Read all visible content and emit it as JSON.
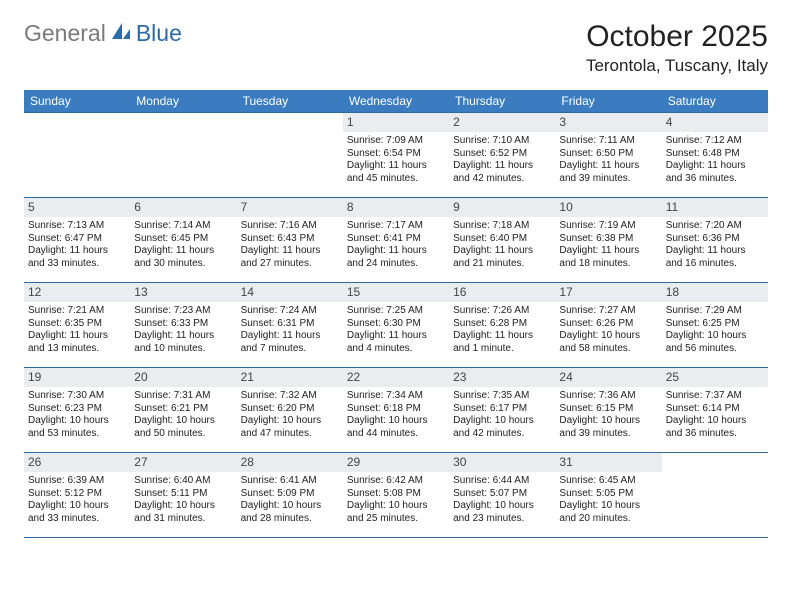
{
  "logo": {
    "general": "General",
    "blue": "Blue"
  },
  "title": {
    "month": "October 2025",
    "location": "Terontola, Tuscany, Italy"
  },
  "colors": {
    "header_bg": "#3a7cbf",
    "header_text": "#ffffff",
    "daynum_bg": "#e9edf0",
    "border": "#2b6aa6",
    "text": "#222222",
    "logo_gray": "#7a7a7a",
    "logo_blue": "#2b6aa6",
    "page_bg": "#ffffff"
  },
  "day_headers": [
    "Sunday",
    "Monday",
    "Tuesday",
    "Wednesday",
    "Thursday",
    "Friday",
    "Saturday"
  ],
  "weeks": [
    [
      {
        "empty": true
      },
      {
        "empty": true
      },
      {
        "empty": true
      },
      {
        "num": "1",
        "sunrise": "Sunrise: 7:09 AM",
        "sunset": "Sunset: 6:54 PM",
        "day1": "Daylight: 11 hours",
        "day2": "and 45 minutes."
      },
      {
        "num": "2",
        "sunrise": "Sunrise: 7:10 AM",
        "sunset": "Sunset: 6:52 PM",
        "day1": "Daylight: 11 hours",
        "day2": "and 42 minutes."
      },
      {
        "num": "3",
        "sunrise": "Sunrise: 7:11 AM",
        "sunset": "Sunset: 6:50 PM",
        "day1": "Daylight: 11 hours",
        "day2": "and 39 minutes."
      },
      {
        "num": "4",
        "sunrise": "Sunrise: 7:12 AM",
        "sunset": "Sunset: 6:48 PM",
        "day1": "Daylight: 11 hours",
        "day2": "and 36 minutes."
      }
    ],
    [
      {
        "num": "5",
        "sunrise": "Sunrise: 7:13 AM",
        "sunset": "Sunset: 6:47 PM",
        "day1": "Daylight: 11 hours",
        "day2": "and 33 minutes."
      },
      {
        "num": "6",
        "sunrise": "Sunrise: 7:14 AM",
        "sunset": "Sunset: 6:45 PM",
        "day1": "Daylight: 11 hours",
        "day2": "and 30 minutes."
      },
      {
        "num": "7",
        "sunrise": "Sunrise: 7:16 AM",
        "sunset": "Sunset: 6:43 PM",
        "day1": "Daylight: 11 hours",
        "day2": "and 27 minutes."
      },
      {
        "num": "8",
        "sunrise": "Sunrise: 7:17 AM",
        "sunset": "Sunset: 6:41 PM",
        "day1": "Daylight: 11 hours",
        "day2": "and 24 minutes."
      },
      {
        "num": "9",
        "sunrise": "Sunrise: 7:18 AM",
        "sunset": "Sunset: 6:40 PM",
        "day1": "Daylight: 11 hours",
        "day2": "and 21 minutes."
      },
      {
        "num": "10",
        "sunrise": "Sunrise: 7:19 AM",
        "sunset": "Sunset: 6:38 PM",
        "day1": "Daylight: 11 hours",
        "day2": "and 18 minutes."
      },
      {
        "num": "11",
        "sunrise": "Sunrise: 7:20 AM",
        "sunset": "Sunset: 6:36 PM",
        "day1": "Daylight: 11 hours",
        "day2": "and 16 minutes."
      }
    ],
    [
      {
        "num": "12",
        "sunrise": "Sunrise: 7:21 AM",
        "sunset": "Sunset: 6:35 PM",
        "day1": "Daylight: 11 hours",
        "day2": "and 13 minutes."
      },
      {
        "num": "13",
        "sunrise": "Sunrise: 7:23 AM",
        "sunset": "Sunset: 6:33 PM",
        "day1": "Daylight: 11 hours",
        "day2": "and 10 minutes."
      },
      {
        "num": "14",
        "sunrise": "Sunrise: 7:24 AM",
        "sunset": "Sunset: 6:31 PM",
        "day1": "Daylight: 11 hours",
        "day2": "and 7 minutes."
      },
      {
        "num": "15",
        "sunrise": "Sunrise: 7:25 AM",
        "sunset": "Sunset: 6:30 PM",
        "day1": "Daylight: 11 hours",
        "day2": "and 4 minutes."
      },
      {
        "num": "16",
        "sunrise": "Sunrise: 7:26 AM",
        "sunset": "Sunset: 6:28 PM",
        "day1": "Daylight: 11 hours",
        "day2": "and 1 minute."
      },
      {
        "num": "17",
        "sunrise": "Sunrise: 7:27 AM",
        "sunset": "Sunset: 6:26 PM",
        "day1": "Daylight: 10 hours",
        "day2": "and 58 minutes."
      },
      {
        "num": "18",
        "sunrise": "Sunrise: 7:29 AM",
        "sunset": "Sunset: 6:25 PM",
        "day1": "Daylight: 10 hours",
        "day2": "and 56 minutes."
      }
    ],
    [
      {
        "num": "19",
        "sunrise": "Sunrise: 7:30 AM",
        "sunset": "Sunset: 6:23 PM",
        "day1": "Daylight: 10 hours",
        "day2": "and 53 minutes."
      },
      {
        "num": "20",
        "sunrise": "Sunrise: 7:31 AM",
        "sunset": "Sunset: 6:21 PM",
        "day1": "Daylight: 10 hours",
        "day2": "and 50 minutes."
      },
      {
        "num": "21",
        "sunrise": "Sunrise: 7:32 AM",
        "sunset": "Sunset: 6:20 PM",
        "day1": "Daylight: 10 hours",
        "day2": "and 47 minutes."
      },
      {
        "num": "22",
        "sunrise": "Sunrise: 7:34 AM",
        "sunset": "Sunset: 6:18 PM",
        "day1": "Daylight: 10 hours",
        "day2": "and 44 minutes."
      },
      {
        "num": "23",
        "sunrise": "Sunrise: 7:35 AM",
        "sunset": "Sunset: 6:17 PM",
        "day1": "Daylight: 10 hours",
        "day2": "and 42 minutes."
      },
      {
        "num": "24",
        "sunrise": "Sunrise: 7:36 AM",
        "sunset": "Sunset: 6:15 PM",
        "day1": "Daylight: 10 hours",
        "day2": "and 39 minutes."
      },
      {
        "num": "25",
        "sunrise": "Sunrise: 7:37 AM",
        "sunset": "Sunset: 6:14 PM",
        "day1": "Daylight: 10 hours",
        "day2": "and 36 minutes."
      }
    ],
    [
      {
        "num": "26",
        "sunrise": "Sunrise: 6:39 AM",
        "sunset": "Sunset: 5:12 PM",
        "day1": "Daylight: 10 hours",
        "day2": "and 33 minutes."
      },
      {
        "num": "27",
        "sunrise": "Sunrise: 6:40 AM",
        "sunset": "Sunset: 5:11 PM",
        "day1": "Daylight: 10 hours",
        "day2": "and 31 minutes."
      },
      {
        "num": "28",
        "sunrise": "Sunrise: 6:41 AM",
        "sunset": "Sunset: 5:09 PM",
        "day1": "Daylight: 10 hours",
        "day2": "and 28 minutes."
      },
      {
        "num": "29",
        "sunrise": "Sunrise: 6:42 AM",
        "sunset": "Sunset: 5:08 PM",
        "day1": "Daylight: 10 hours",
        "day2": "and 25 minutes."
      },
      {
        "num": "30",
        "sunrise": "Sunrise: 6:44 AM",
        "sunset": "Sunset: 5:07 PM",
        "day1": "Daylight: 10 hours",
        "day2": "and 23 minutes."
      },
      {
        "num": "31",
        "sunrise": "Sunrise: 6:45 AM",
        "sunset": "Sunset: 5:05 PM",
        "day1": "Daylight: 10 hours",
        "day2": "and 20 minutes."
      },
      {
        "empty": true
      }
    ]
  ]
}
